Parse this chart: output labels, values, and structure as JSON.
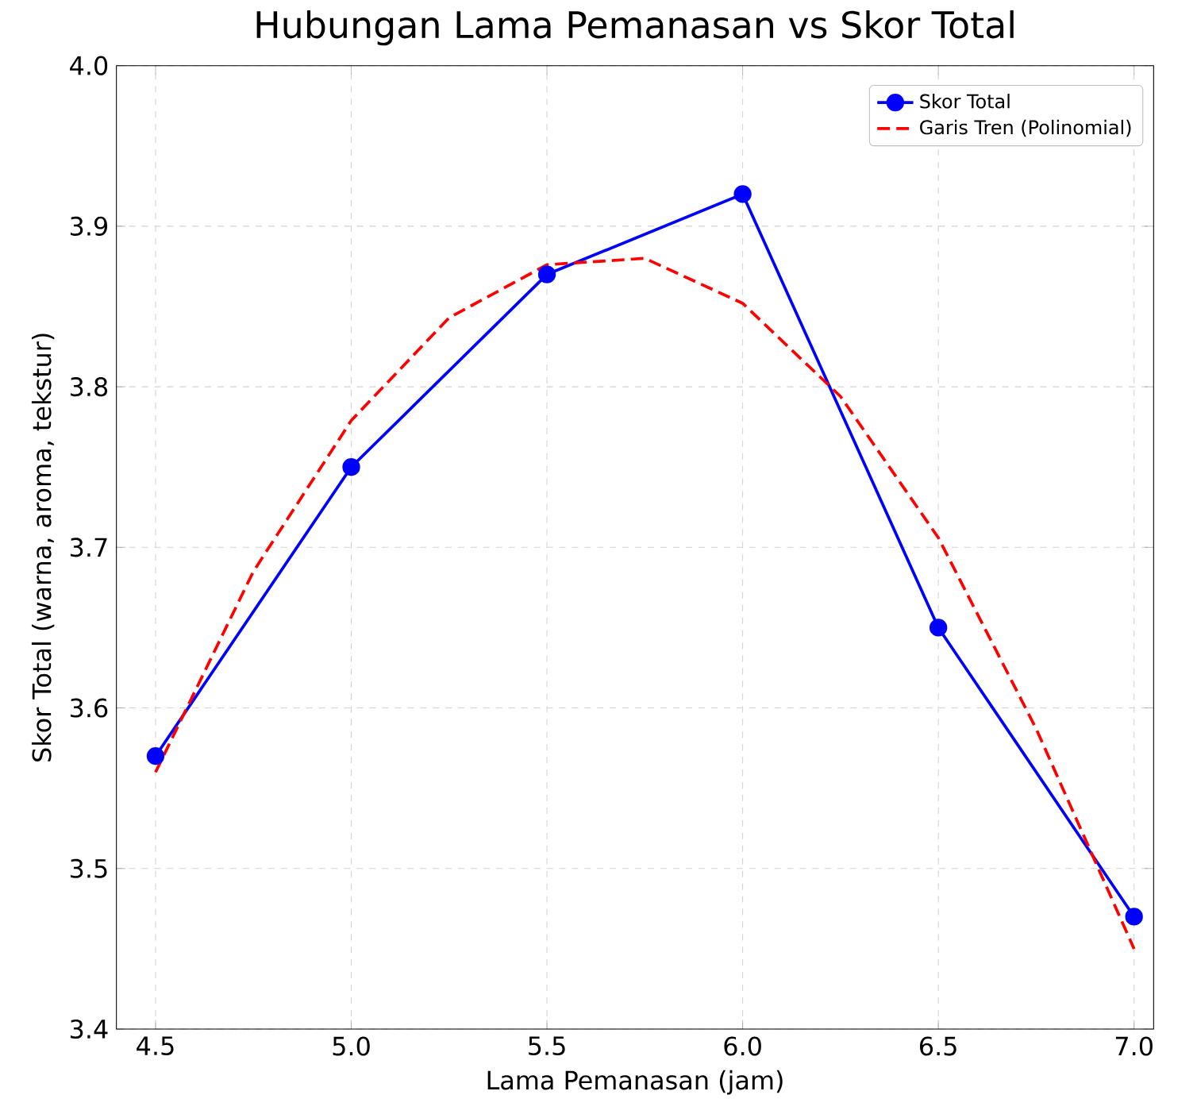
{
  "chart_data": {
    "type": "line",
    "title": "Hubungan Lama Pemanasan vs Skor Total",
    "xlabel": "Lama Pemanasan (jam)",
    "ylabel": "Skor Total (warna, aroma, tekstur)",
    "xlim": [
      4.4,
      7.05
    ],
    "ylim": [
      3.4,
      4.0
    ],
    "xticks": [
      {
        "value": 4.5,
        "label": "4.5"
      },
      {
        "value": 5.0,
        "label": "5.0"
      },
      {
        "value": 5.5,
        "label": "5.5"
      },
      {
        "value": 6.0,
        "label": "6.0"
      },
      {
        "value": 6.5,
        "label": "6.5"
      },
      {
        "value": 7.0,
        "label": "7.0"
      }
    ],
    "yticks": [
      {
        "value": 3.4,
        "label": "3.4"
      },
      {
        "value": 3.5,
        "label": "3.5"
      },
      {
        "value": 3.6,
        "label": "3.6"
      },
      {
        "value": 3.7,
        "label": "3.7"
      },
      {
        "value": 3.8,
        "label": "3.8"
      },
      {
        "value": 3.9,
        "label": "3.9"
      },
      {
        "value": 4.0,
        "label": "4.0"
      }
    ],
    "grid": true,
    "legend": "top right",
    "series": [
      {
        "name": "Skor Total",
        "color": "#0000ff",
        "marker": "circle",
        "line_style": "solid",
        "x": [
          4.5,
          5.0,
          5.5,
          6.0,
          6.5,
          7.0
        ],
        "values": [
          3.57,
          3.75,
          3.87,
          3.92,
          3.65,
          3.47
        ]
      },
      {
        "name": "Garis Tren (Polinomial)",
        "color": "#ff0000",
        "marker": "none",
        "line_style": "dashed",
        "x": [
          4.5,
          4.75,
          5.0,
          5.25,
          5.5,
          5.75,
          6.0,
          6.25,
          6.5,
          6.75,
          7.0
        ],
        "values": [
          3.56,
          3.685,
          3.779,
          3.843,
          3.876,
          3.88,
          3.852,
          3.794,
          3.706,
          3.587,
          3.45
        ]
      }
    ]
  }
}
